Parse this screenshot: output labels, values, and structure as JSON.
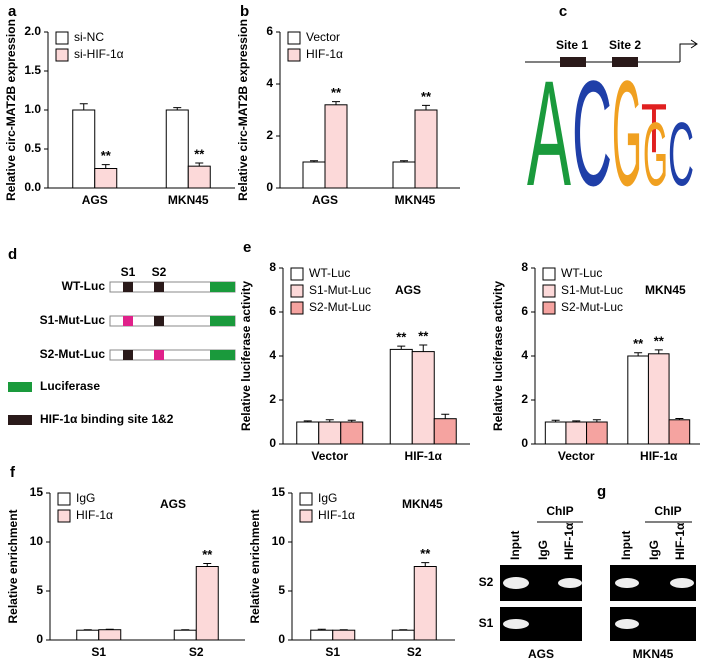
{
  "chart_data": [
    {
      "type": "bar",
      "panel": "a",
      "ylabel": "Relative circ-MAT2B expression",
      "categories": [
        "AGS",
        "MKN45"
      ],
      "ylim": [
        0,
        2
      ],
      "yticks": [
        {
          "value": 0,
          "label": "0.0"
        },
        0.5,
        {
          "value": 1,
          "label": "1.0"
        },
        1.5,
        {
          "value": 2,
          "label": "2.0"
        }
      ],
      "series": [
        {
          "name": "si-NC",
          "color": "#ffffff",
          "values": [
            1.0,
            1.0
          ],
          "errors": [
            0.08,
            0.03
          ],
          "significance": [
            null,
            null
          ]
        },
        {
          "name": "si-HIF-1α",
          "color": "#fcd9d9",
          "values": [
            0.25,
            0.28
          ],
          "errors": [
            0.05,
            0.04
          ],
          "significance": [
            "**",
            "**"
          ]
        }
      ]
    },
    {
      "type": "bar",
      "panel": "b",
      "ylabel": "Relative circ-MAT2B expression",
      "categories": [
        "AGS",
        "MKN45"
      ],
      "ylim": [
        0,
        6
      ],
      "yticks": [
        0,
        2,
        4,
        6
      ],
      "series": [
        {
          "name": "Vector",
          "color": "#ffffff",
          "values": [
            1.0,
            1.0
          ],
          "errors": [
            0.05,
            0.05
          ],
          "significance": [
            null,
            null
          ]
        },
        {
          "name": "HIF-1α",
          "color": "#fcd9d9",
          "values": [
            3.2,
            3.0
          ],
          "errors": [
            0.12,
            0.18
          ],
          "significance": [
            "**",
            "**"
          ]
        }
      ]
    },
    {
      "type": "bar",
      "panel": "e",
      "note": "AGS",
      "ylabel": "Relative luciferase activity",
      "categories": [
        "Vector",
        "HIF-1α"
      ],
      "ylim": [
        0,
        8
      ],
      "yticks": [
        0,
        2,
        4,
        6,
        8
      ],
      "series": [
        {
          "name": "WT-Luc",
          "color": "#ffffff",
          "values": [
            1.0,
            4.3
          ],
          "errors": [
            0.05,
            0.15
          ],
          "significance": [
            null,
            "**"
          ]
        },
        {
          "name": "S1-Mut-Luc",
          "color": "#fcd9d9",
          "values": [
            1.0,
            4.2
          ],
          "errors": [
            0.1,
            0.3
          ],
          "significance": [
            null,
            "**"
          ]
        },
        {
          "name": "S2-Mut-Luc",
          "color": "#f5a3a0",
          "values": [
            1.0,
            1.15
          ],
          "errors": [
            0.08,
            0.2
          ],
          "significance": [
            null,
            null
          ]
        }
      ]
    },
    {
      "type": "bar",
      "note": "MKN45",
      "ylabel": "Relative luciferase activity",
      "categories": [
        "Vector",
        "HIF-1α"
      ],
      "ylim": [
        0,
        8
      ],
      "yticks": [
        0,
        2,
        4,
        6,
        8
      ],
      "series": [
        {
          "name": "WT-Luc",
          "color": "#ffffff",
          "values": [
            1.0,
            4.0
          ],
          "errors": [
            0.08,
            0.15
          ],
          "significance": [
            null,
            "**"
          ]
        },
        {
          "name": "S1-Mut-Luc",
          "color": "#fcd9d9",
          "values": [
            1.0,
            4.1
          ],
          "errors": [
            0.05,
            0.18
          ],
          "significance": [
            null,
            "**"
          ]
        },
        {
          "name": "S2-Mut-Luc",
          "color": "#f5a3a0",
          "values": [
            1.0,
            1.1
          ],
          "errors": [
            0.1,
            0.06
          ],
          "significance": [
            null,
            null
          ]
        }
      ]
    },
    {
      "type": "bar",
      "panel": "f",
      "note": "AGS",
      "ylabel": "Relative enrichment",
      "categories": [
        "S1",
        "S2"
      ],
      "ylim": [
        0,
        15
      ],
      "yticks": [
        0,
        5,
        10,
        15
      ],
      "series": [
        {
          "name": "IgG",
          "color": "#ffffff",
          "values": [
            1.0,
            1.0
          ],
          "errors": [
            0.05,
            0.05
          ],
          "significance": [
            null,
            null
          ]
        },
        {
          "name": "HIF-1α",
          "color": "#fcd9d9",
          "values": [
            1.05,
            7.5
          ],
          "errors": [
            0.05,
            0.3
          ],
          "significance": [
            null,
            "**"
          ]
        }
      ]
    },
    {
      "type": "bar",
      "note": "MKN45",
      "ylabel": "Relative enrichment",
      "categories": [
        "S1",
        "S2"
      ],
      "ylim": [
        0,
        15
      ],
      "yticks": [
        0,
        5,
        10,
        15
      ],
      "series": [
        {
          "name": "IgG",
          "color": "#ffffff",
          "values": [
            1.0,
            1.0
          ],
          "errors": [
            0.1,
            0.05
          ],
          "significance": [
            null,
            null
          ]
        },
        {
          "name": "HIF-1α",
          "color": "#fcd9d9",
          "values": [
            1.0,
            7.5
          ],
          "errors": [
            0.05,
            0.4
          ],
          "significance": [
            null,
            "**"
          ]
        }
      ]
    }
  ],
  "motif": {
    "panel": "c",
    "sites": [
      "Site 1",
      "Site 2"
    ],
    "logo": [
      "A",
      "C",
      "G",
      "T",
      "G",
      "C"
    ]
  },
  "constructs": {
    "panel": "d",
    "site_labels": [
      "S1",
      "S2"
    ],
    "names": [
      "WT-Luc",
      "S1-Mut-Luc",
      "S2-Mut-Luc"
    ],
    "legend": [
      "Luciferase",
      "HIF-1α binding site 1&2"
    ]
  },
  "chip": {
    "panel": "g",
    "header": "ChIP",
    "lanes": [
      "Input",
      "IgG",
      "HIF-1α"
    ],
    "rows": [
      "S2",
      "S1"
    ],
    "cells": [
      "AGS",
      "MKN45"
    ]
  }
}
